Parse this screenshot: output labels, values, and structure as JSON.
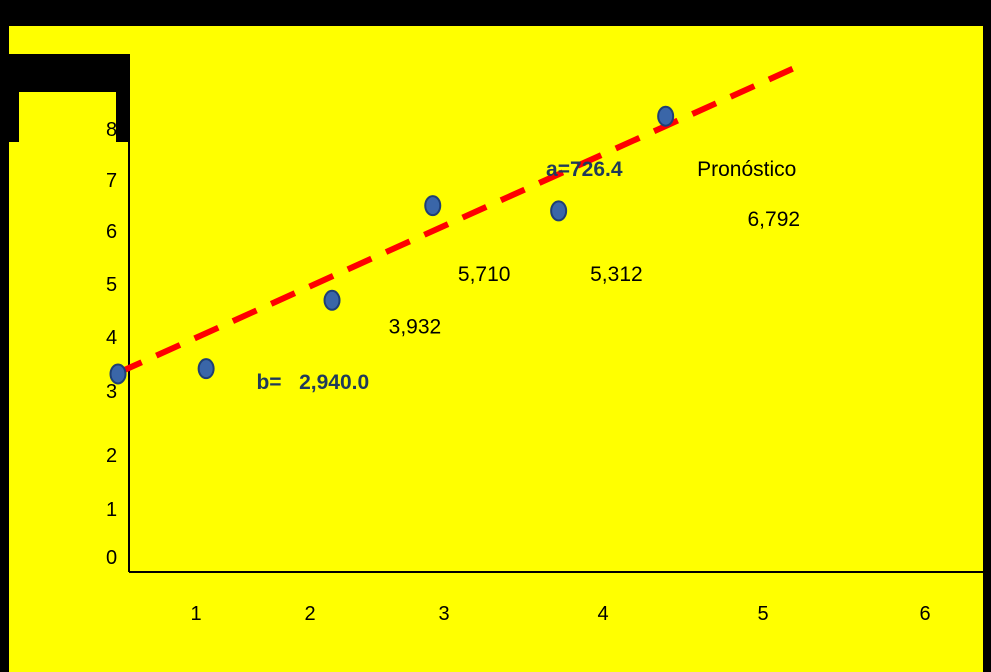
{
  "colors": {
    "background": "#ffff00",
    "frame": "#000000",
    "trend_line": "#ff0000",
    "point_fill": "#3a66a8",
    "point_stroke": "#1f3f74",
    "bold_label": "#1f3a5a"
  },
  "chart_data": {
    "type": "scatter",
    "title": "",
    "xlabel": "",
    "ylabel": "",
    "x_ticks": [
      "1",
      "2",
      "3",
      "4",
      "5",
      "6"
    ],
    "y_ticks": [
      "0",
      "1",
      "2",
      "3",
      "4",
      "5",
      "6",
      "7",
      "8"
    ],
    "points": [
      {
        "x": 0.5,
        "y": 3.1
      },
      {
        "x": 1.2,
        "y": 3.2
      },
      {
        "x": 2.2,
        "y": 4.5
      },
      {
        "x": 3.0,
        "y": 6.3
      },
      {
        "x": 4.0,
        "y": 6.2
      },
      {
        "x": 4.85,
        "y": 8.0
      }
    ],
    "trend_line": {
      "x_start": 0.5,
      "x_end": 5.95,
      "y_start": 3.12,
      "y_end": 9.0,
      "style": "dashed"
    },
    "annotations": [
      {
        "text": "b=   2,940.0",
        "style": "bold",
        "x": 1.6,
        "y": 2.95
      },
      {
        "text": "3,932",
        "style": "plain",
        "x": 2.65,
        "y": 4.0
      },
      {
        "text": "5,710",
        "style": "plain",
        "x": 3.2,
        "y": 5.0
      },
      {
        "text": "5,312",
        "style": "plain",
        "x": 4.25,
        "y": 5.0
      },
      {
        "text": "a=726.4",
        "style": "bold",
        "x": 3.9,
        "y": 7.0
      },
      {
        "text": "Pronóstico",
        "style": "plain",
        "x": 5.1,
        "y": 7.0
      },
      {
        "text": "6,792",
        "style": "plain",
        "x": 5.5,
        "y": 6.05
      }
    ],
    "grid": false,
    "legend": "none"
  }
}
